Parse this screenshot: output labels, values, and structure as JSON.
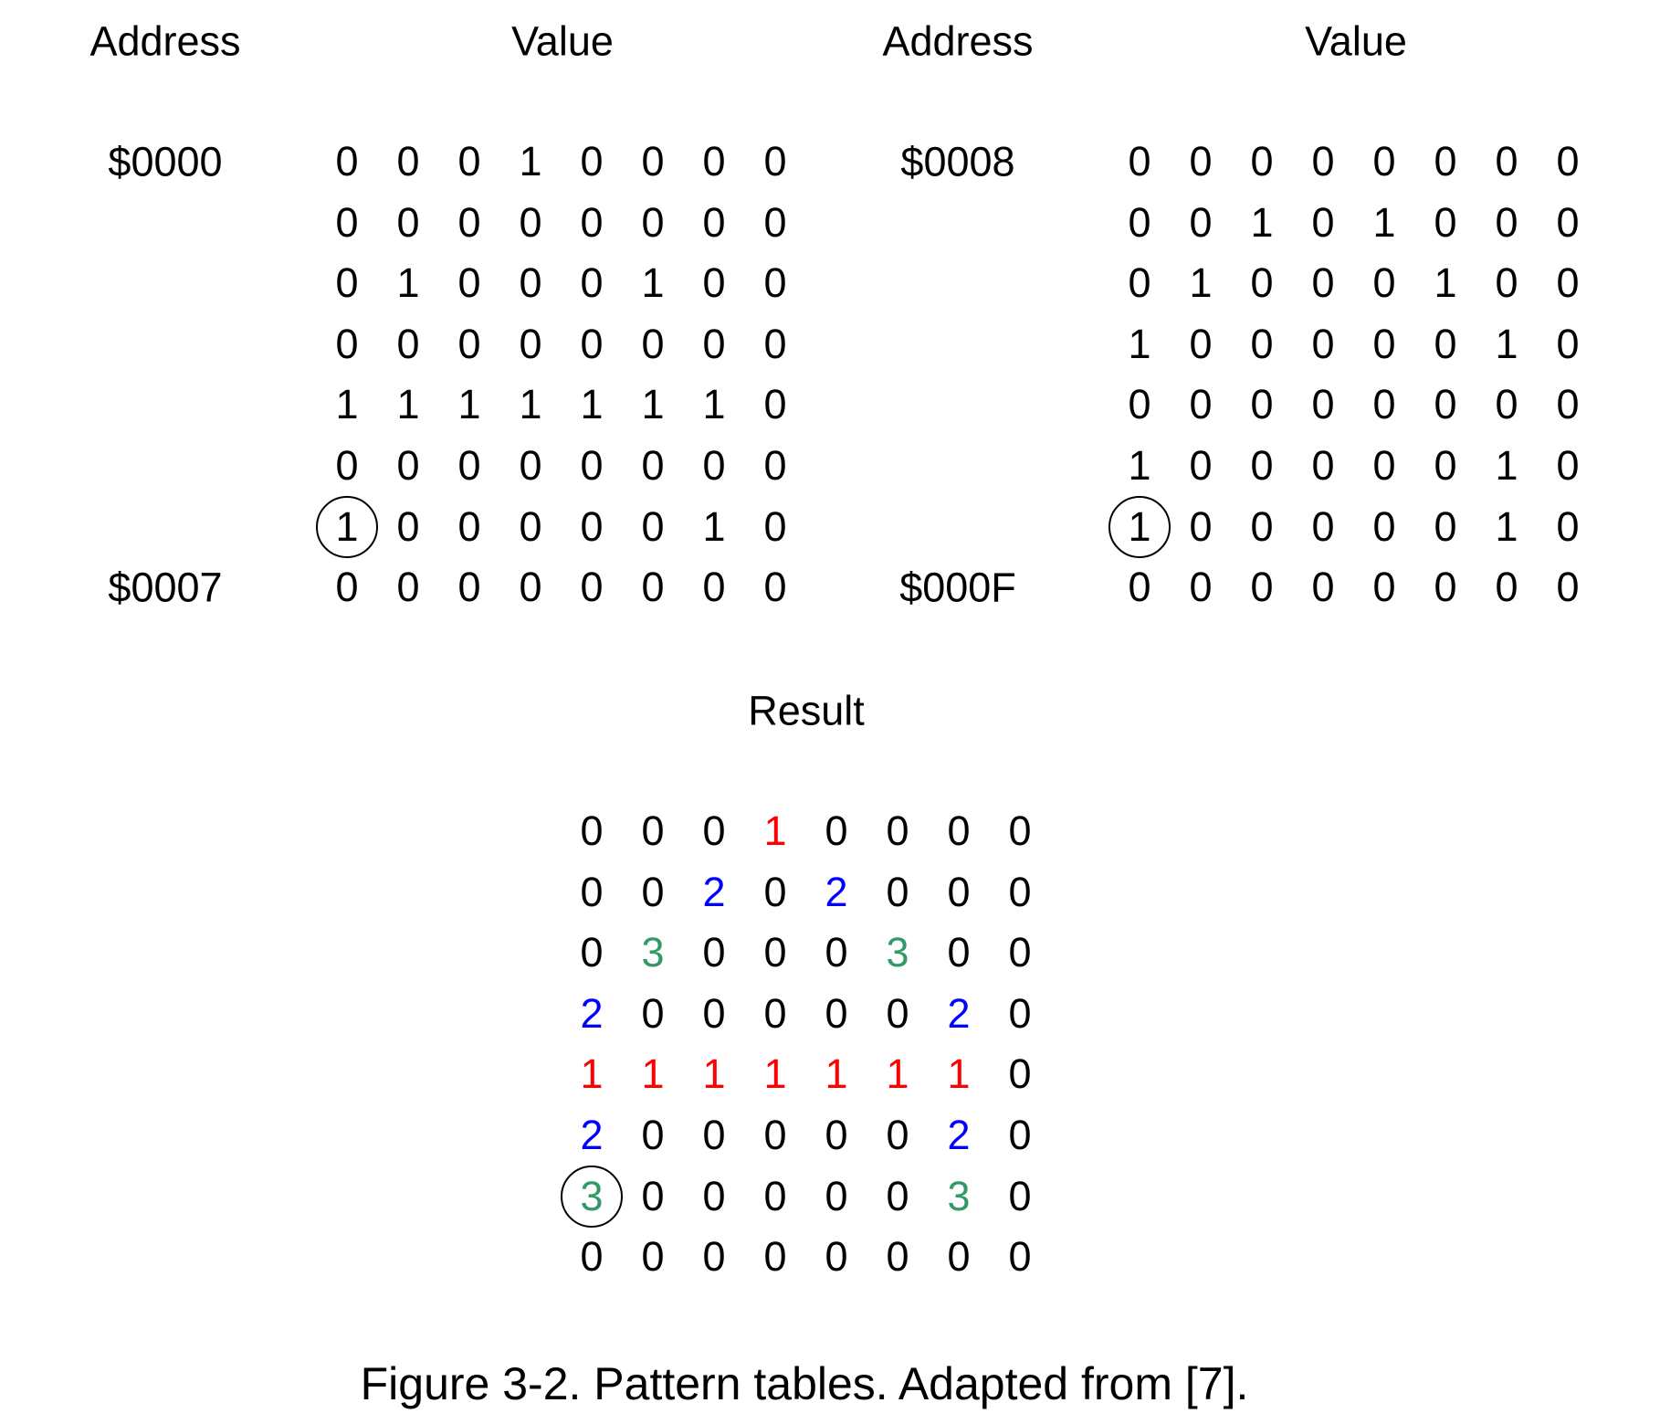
{
  "headers": {
    "left_address": "Address",
    "left_value": "Value",
    "right_address": "Address",
    "right_value": "Value",
    "result": "Result"
  },
  "left_table": {
    "start_address": "$0000",
    "end_address": "$0007",
    "rows": [
      [
        "0",
        "0",
        "0",
        "1",
        "0",
        "0",
        "0",
        "0"
      ],
      [
        "0",
        "0",
        "0",
        "0",
        "0",
        "0",
        "0",
        "0"
      ],
      [
        "0",
        "1",
        "0",
        "0",
        "0",
        "1",
        "0",
        "0"
      ],
      [
        "0",
        "0",
        "0",
        "0",
        "0",
        "0",
        "0",
        "0"
      ],
      [
        "1",
        "1",
        "1",
        "1",
        "1",
        "1",
        "1",
        "0"
      ],
      [
        "0",
        "0",
        "0",
        "0",
        "0",
        "0",
        "0",
        "0"
      ],
      [
        "1",
        "0",
        "0",
        "0",
        "0",
        "0",
        "1",
        "0"
      ],
      [
        "0",
        "0",
        "0",
        "0",
        "0",
        "0",
        "0",
        "0"
      ]
    ],
    "circled_cell": {
      "row": 6,
      "col": 0
    }
  },
  "right_table": {
    "start_address": "$0008",
    "end_address": "$000F",
    "rows": [
      [
        "0",
        "0",
        "0",
        "0",
        "0",
        "0",
        "0",
        "0"
      ],
      [
        "0",
        "0",
        "1",
        "0",
        "1",
        "0",
        "0",
        "0"
      ],
      [
        "0",
        "1",
        "0",
        "0",
        "0",
        "1",
        "0",
        "0"
      ],
      [
        "1",
        "0",
        "0",
        "0",
        "0",
        "0",
        "1",
        "0"
      ],
      [
        "0",
        "0",
        "0",
        "0",
        "0",
        "0",
        "0",
        "0"
      ],
      [
        "1",
        "0",
        "0",
        "0",
        "0",
        "0",
        "1",
        "0"
      ],
      [
        "1",
        "0",
        "0",
        "0",
        "0",
        "0",
        "1",
        "0"
      ],
      [
        "0",
        "0",
        "0",
        "0",
        "0",
        "0",
        "0",
        "0"
      ]
    ],
    "circled_cell": {
      "row": 6,
      "col": 0
    }
  },
  "result_table": {
    "rows": [
      [
        "0",
        "0",
        "0",
        "1",
        "0",
        "0",
        "0",
        "0"
      ],
      [
        "0",
        "0",
        "2",
        "0",
        "2",
        "0",
        "0",
        "0"
      ],
      [
        "0",
        "3",
        "0",
        "0",
        "0",
        "3",
        "0",
        "0"
      ],
      [
        "2",
        "0",
        "0",
        "0",
        "0",
        "0",
        "2",
        "0"
      ],
      [
        "1",
        "1",
        "1",
        "1",
        "1",
        "1",
        "1",
        "0"
      ],
      [
        "2",
        "0",
        "0",
        "0",
        "0",
        "0",
        "2",
        "0"
      ],
      [
        "3",
        "0",
        "0",
        "0",
        "0",
        "0",
        "3",
        "0"
      ],
      [
        "0",
        "0",
        "0",
        "0",
        "0",
        "0",
        "0",
        "0"
      ]
    ],
    "circled_cell": {
      "row": 6,
      "col": 0
    }
  },
  "value_colors": {
    "0": "#000000",
    "1": "#ff0000",
    "2": "#0000ff",
    "3": "#339966"
  },
  "caption": "Figure 3-2. Pattern tables. Adapted from [7]."
}
